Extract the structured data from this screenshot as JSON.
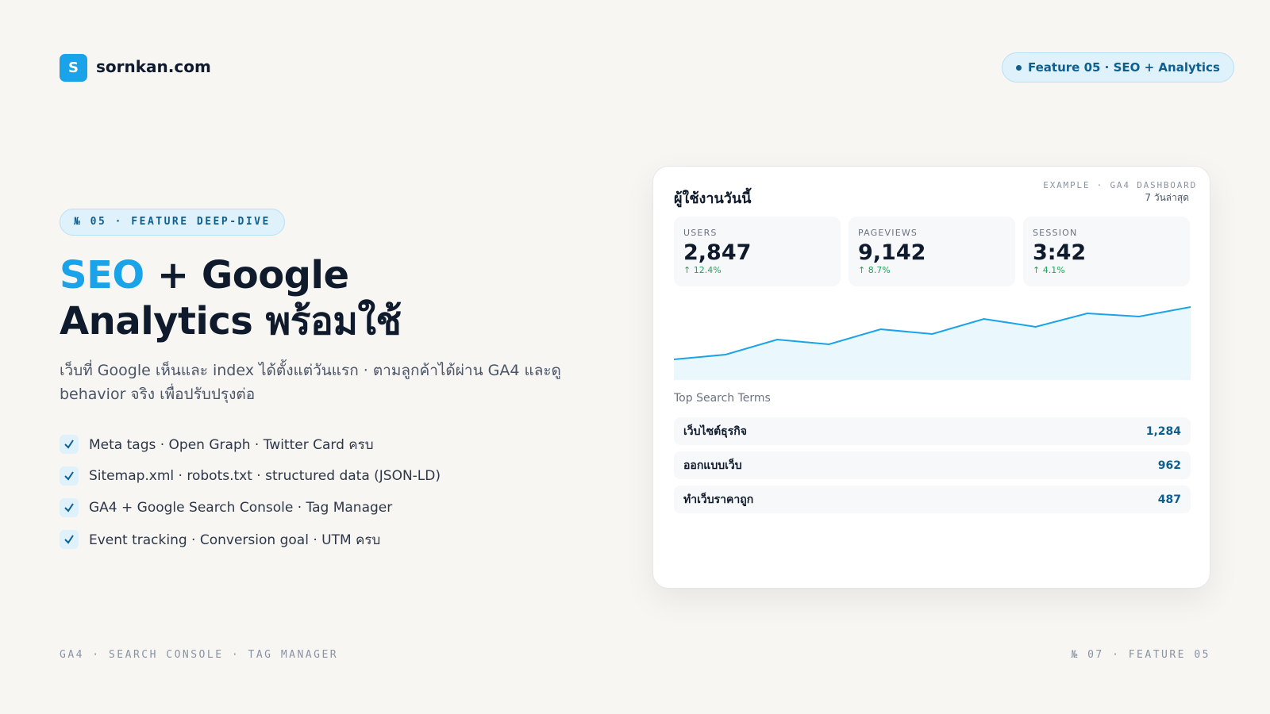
{
  "header": {
    "logo_letter": "S",
    "site": "sornkan.com",
    "badge": "Feature 05 · SEO + Analytics"
  },
  "hero": {
    "eyebrow": "№ 05 · FEATURE DEEP-DIVE",
    "title_highlight": "SEO",
    "title_line1_rest": "+ Google",
    "title_line2": "Analytics พร้อมใช้",
    "description": "เว็บที่ Google เห็นและ index ได้ตั้งแต่วันแรก · ตามลูกค้าได้ผ่าน GA4 และดู behavior จริง เพื่อปรับปรุงต่อ",
    "features": [
      "Meta tags · Open Graph · Twitter Card ครบ",
      "Sitemap.xml · robots.txt · structured data (JSON-LD)",
      "GA4 + Google Search Console · Tag Manager",
      "Event tracking · Conversion goal · UTM ครบ"
    ]
  },
  "dashboard": {
    "title": "ผู้ใช้งานวันนี้",
    "label": "EXAMPLE · GA4 DASHBOARD",
    "period": "7 วันล่าสุด",
    "stats": [
      {
        "label": "USERS",
        "value": "2,847",
        "change": "↑ 12.4%"
      },
      {
        "label": "PAGEVIEWS",
        "value": "9,142",
        "change": "↑ 8.7%"
      },
      {
        "label": "SESSION",
        "value": "3:42",
        "change": "↑ 4.1%"
      }
    ],
    "trend": {
      "type": "area",
      "values": [
        26,
        32,
        51,
        45,
        64,
        58,
        77,
        67,
        84,
        80,
        92
      ],
      "ylim": [
        0,
        100
      ],
      "color": "#1aa3e8"
    },
    "search_terms_title": "Top Search Terms",
    "search_terms": [
      {
        "term": "เว็บไซต์ธุรกิจ",
        "count": "1,284"
      },
      {
        "term": "ออกแบบเว็บ",
        "count": "962"
      },
      {
        "term": "ทำเว็บราคาถูก",
        "count": "487"
      }
    ]
  },
  "footer": {
    "left": "GA4 · SEARCH CONSOLE · TAG MANAGER",
    "right": "№ 07 · FEATURE 05"
  }
}
